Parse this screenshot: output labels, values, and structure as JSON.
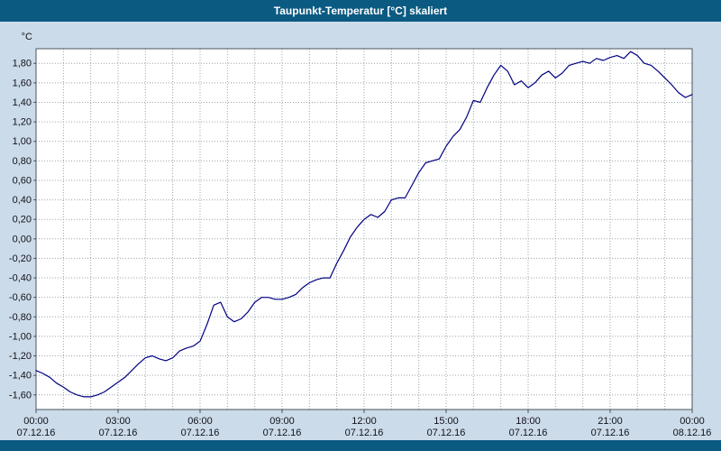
{
  "window": {
    "title": "Taupunkt-Temperatur [°C] skaliert"
  },
  "colors": {
    "header_bar": "#0b5a82",
    "footer_bar": "#0b5a82",
    "page_background": "#ccdbe9",
    "plot_background": "#ffffff",
    "plot_border": "#4a5560",
    "grid": "#9aa4ad",
    "line": "#000080",
    "tick_text": "#10121a"
  },
  "chart_data": {
    "type": "line",
    "title": "Taupunkt-Temperatur [°C] skaliert",
    "ylabel": "°C",
    "xlabel": "",
    "ylim": [
      -1.75,
      1.95
    ],
    "xlim_hours": [
      0,
      24
    ],
    "grid": "dotted; vertical every hour, horizontal every 0.2 °C",
    "legend": "none",
    "y_ticks": [
      1.8,
      1.6,
      1.4,
      1.2,
      1.0,
      0.8,
      0.6,
      0.4,
      0.2,
      0.0,
      -0.2,
      -0.4,
      -0.6,
      -0.8,
      -1.0,
      -1.2,
      -1.4,
      -1.6
    ],
    "y_tick_labels": [
      "1,80",
      "1,60",
      "1,40",
      "1,20",
      "1,00",
      "0,80",
      "0,60",
      "0,40",
      "0,20",
      "0,00",
      "-0,20",
      "-0,40",
      "-0,60",
      "-0,80",
      "-1,00",
      "-1,20",
      "-1,40",
      "-1,60"
    ],
    "x_ticks_hours": [
      0,
      3,
      6,
      9,
      12,
      15,
      18,
      21,
      24
    ],
    "x_tick_times": [
      "00:00",
      "03:00",
      "06:00",
      "09:00",
      "12:00",
      "15:00",
      "18:00",
      "21:00",
      "00:00"
    ],
    "x_tick_dates": [
      "07.12.16",
      "07.12.16",
      "07.12.16",
      "07.12.16",
      "07.12.16",
      "07.12.16",
      "07.12.16",
      "07.12.16",
      "08.12.16"
    ],
    "series": [
      {
        "name": "Taupunkt-Temperatur [°C] skaliert",
        "color": "#000080",
        "x": [
          0,
          0.25,
          0.5,
          0.75,
          1,
          1.25,
          1.5,
          1.75,
          2,
          2.25,
          2.5,
          2.75,
          3,
          3.25,
          3.5,
          3.75,
          4,
          4.25,
          4.5,
          4.75,
          5,
          5.25,
          5.5,
          5.75,
          6,
          6.25,
          6.5,
          6.75,
          7,
          7.25,
          7.5,
          7.75,
          8,
          8.25,
          8.5,
          8.75,
          9,
          9.25,
          9.5,
          9.75,
          10,
          10.25,
          10.5,
          10.75,
          11,
          11.25,
          11.5,
          11.75,
          12,
          12.25,
          12.5,
          12.75,
          13,
          13.25,
          13.5,
          13.75,
          14,
          14.25,
          14.5,
          14.75,
          15,
          15.25,
          15.5,
          15.75,
          16,
          16.25,
          16.5,
          16.75,
          17,
          17.25,
          17.5,
          17.75,
          18,
          18.25,
          18.5,
          18.75,
          19,
          19.25,
          19.5,
          19.75,
          20,
          20.25,
          20.5,
          20.75,
          21,
          21.25,
          21.5,
          21.75,
          22,
          22.25,
          22.5,
          22.75,
          23,
          23.25,
          23.5,
          23.75,
          24
        ],
        "y": [
          -1.35,
          -1.38,
          -1.42,
          -1.48,
          -1.52,
          -1.57,
          -1.6,
          -1.62,
          -1.62,
          -1.6,
          -1.57,
          -1.52,
          -1.47,
          -1.42,
          -1.35,
          -1.28,
          -1.22,
          -1.2,
          -1.23,
          -1.25,
          -1.22,
          -1.15,
          -1.12,
          -1.1,
          -1.05,
          -0.88,
          -0.68,
          -0.65,
          -0.8,
          -0.85,
          -0.82,
          -0.75,
          -0.65,
          -0.6,
          -0.6,
          -0.62,
          -0.62,
          -0.6,
          -0.57,
          -0.5,
          -0.45,
          -0.42,
          -0.4,
          -0.4,
          -0.25,
          -0.12,
          0.02,
          0.12,
          0.2,
          0.25,
          0.22,
          0.28,
          0.4,
          0.42,
          0.42,
          0.55,
          0.68,
          0.78,
          0.8,
          0.82,
          0.95,
          1.05,
          1.12,
          1.25,
          1.42,
          1.4,
          1.55,
          1.68,
          1.78,
          1.72,
          1.58,
          1.62,
          1.55,
          1.6,
          1.68,
          1.72,
          1.65,
          1.7,
          1.78,
          1.8,
          1.82,
          1.8,
          1.85,
          1.83,
          1.86,
          1.88,
          1.85,
          1.92,
          1.88,
          1.8,
          1.78,
          1.72,
          1.65,
          1.58,
          1.5,
          1.45,
          1.48
        ]
      }
    ]
  }
}
